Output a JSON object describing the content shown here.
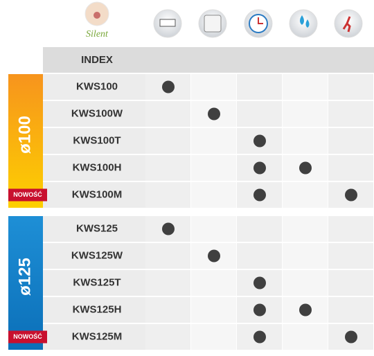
{
  "header": {
    "brand": "Silent",
    "index_label": "INDEX"
  },
  "groups": [
    {
      "label": "ø100",
      "color_top": "#f7941d",
      "color_bottom": "#fdd000",
      "rows": [
        {
          "name": "KWS100",
          "features": [
            true,
            false,
            false,
            false,
            false
          ]
        },
        {
          "name": "KWS100W",
          "features": [
            false,
            true,
            false,
            false,
            false
          ]
        },
        {
          "name": "KWS100T",
          "features": [
            false,
            false,
            true,
            false,
            false
          ]
        },
        {
          "name": "KWS100H",
          "features": [
            false,
            false,
            true,
            true,
            false
          ]
        },
        {
          "name": "KWS100M",
          "badge": "NOWOŚĆ",
          "features": [
            false,
            false,
            true,
            false,
            true
          ]
        }
      ]
    },
    {
      "label": "ø125",
      "color_top": "#1e8fd6",
      "color_bottom": "#0b6fb8",
      "rows": [
        {
          "name": "KWS125",
          "features": [
            true,
            false,
            false,
            false,
            false
          ]
        },
        {
          "name": "KWS125W",
          "features": [
            false,
            true,
            false,
            false,
            false
          ]
        },
        {
          "name": "KWS125T",
          "features": [
            false,
            false,
            true,
            false,
            false
          ]
        },
        {
          "name": "KWS125H",
          "features": [
            false,
            false,
            true,
            true,
            false
          ]
        },
        {
          "name": "KWS125M",
          "badge": "NOWOŚĆ",
          "features": [
            false,
            false,
            true,
            false,
            true
          ]
        }
      ]
    }
  ]
}
